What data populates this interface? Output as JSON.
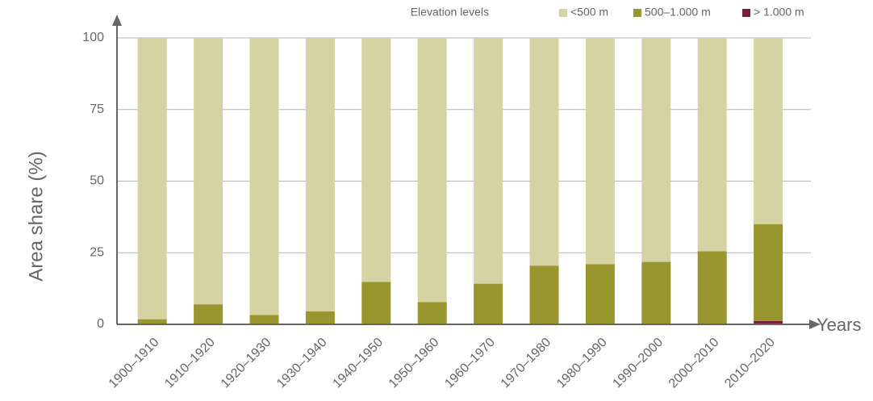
{
  "chart_data": {
    "type": "stacked_bar",
    "x_label": "Years",
    "y_label": "Area share  (%)",
    "legend_title": "Elevation levels",
    "categories": [
      "1900–1910",
      "1910–1920",
      "1920–1930",
      "1930–1940",
      "1940–1950",
      "1950–1960",
      "1960–1970",
      "1970–1980",
      "1980–1990",
      "1990–2000",
      "2000–2010",
      "2010–2020"
    ],
    "series": [
      {
        "name": "<500 m",
        "color": "#d4d3a1",
        "values": [
          98.2,
          93,
          96.7,
          95.5,
          85.2,
          92.2,
          85.8,
          79.5,
          79,
          78.2,
          74.5,
          65
        ]
      },
      {
        "name": "500–1.000 m",
        "color": "#98972f",
        "values": [
          1.8,
          7,
          3.3,
          4.5,
          14.8,
          7.8,
          14.2,
          20.5,
          21,
          21.8,
          25.5,
          33.8
        ]
      },
      {
        "name": "> 1.000 m",
        "color": "#7b1c3e",
        "values": [
          0,
          0,
          0,
          0,
          0,
          0,
          0,
          0,
          0,
          0,
          0,
          1.2
        ]
      }
    ],
    "ylim": [
      0,
      100
    ],
    "yticks": [
      0,
      25,
      50,
      75,
      100
    ],
    "grid": true,
    "legend": "top-right"
  }
}
